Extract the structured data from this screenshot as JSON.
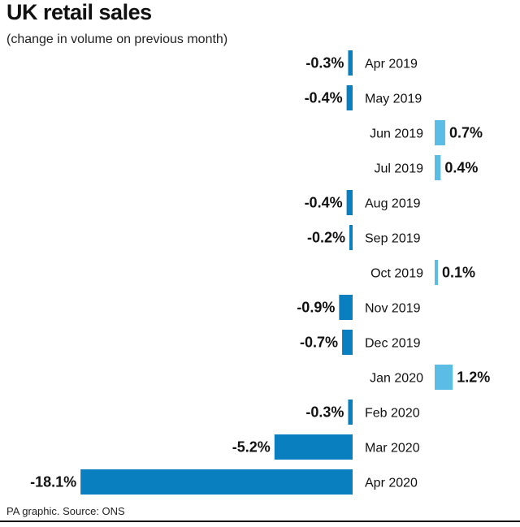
{
  "chart_data": {
    "type": "bar",
    "orientation": "horizontal",
    "title": "UK retail sales",
    "subtitle": "(change in volume on previous month)",
    "categories": [
      "Apr 2019",
      "May 2019",
      "Jun 2019",
      "Jul 2019",
      "Aug 2019",
      "Sep 2019",
      "Oct 2019",
      "Nov 2019",
      "Dec 2019",
      "Jan 2020",
      "Feb 2020",
      "Mar 2020",
      "Apr 2020"
    ],
    "values": [
      -0.3,
      -0.4,
      0.7,
      0.4,
      -0.4,
      -0.2,
      0.1,
      -0.9,
      -0.7,
      1.2,
      -0.3,
      -5.2,
      -18.1
    ],
    "value_labels": [
      "-0.3%",
      "-0.4%",
      "0.7%",
      "0.4%",
      "-0.4%",
      "-0.2%",
      "0.1%",
      "-0.9%",
      "-0.7%",
      "1.2%",
      "-0.3%",
      "-5.2%",
      "-18.1%"
    ],
    "colors": {
      "negative": "#0a7fc0",
      "positive": "#5bbde4"
    },
    "grid": false,
    "legend": "none"
  },
  "footer": {
    "source": "PA graphic. Source: ONS"
  }
}
